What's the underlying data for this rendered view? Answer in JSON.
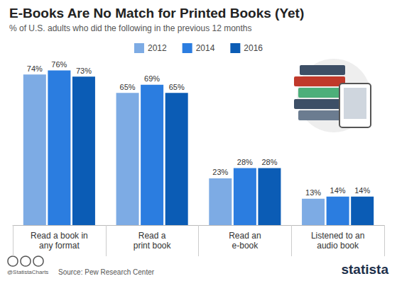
{
  "chart_data": {
    "type": "bar",
    "title": "E-Books Are No Match for Printed Books (Yet)",
    "subtitle": "% of U.S. adults who did the following in the previous 12 months",
    "categories": [
      "Read a book in\nany format",
      "Read a\nprint book",
      "Read an\ne-book",
      "Listened to an\naudio book"
    ],
    "series": [
      {
        "name": "2012",
        "color": "#7dabe4",
        "values": [
          74,
          65,
          23,
          13
        ],
        "value_labels": [
          "74%",
          "65%",
          "23%",
          "13%"
        ]
      },
      {
        "name": "2014",
        "color": "#2b7de0",
        "values": [
          76,
          69,
          28,
          14
        ],
        "value_labels": [
          "76%",
          "69%",
          "28%",
          "14%"
        ]
      },
      {
        "name": "2016",
        "color": "#0b5cb5",
        "values": [
          73,
          65,
          28,
          14
        ],
        "value_labels": [
          "73%",
          "65%",
          "28%",
          "14%"
        ]
      }
    ],
    "ylim": [
      0,
      80
    ],
    "yticks": [
      0,
      20,
      40,
      60,
      80
    ],
    "grid": false,
    "legend": "top",
    "data_labels": true,
    "tick_labels": "x",
    "annotations": [
      "@StatistaCharts",
      "Source: Pew Research Center",
      "statista"
    ]
  }
}
